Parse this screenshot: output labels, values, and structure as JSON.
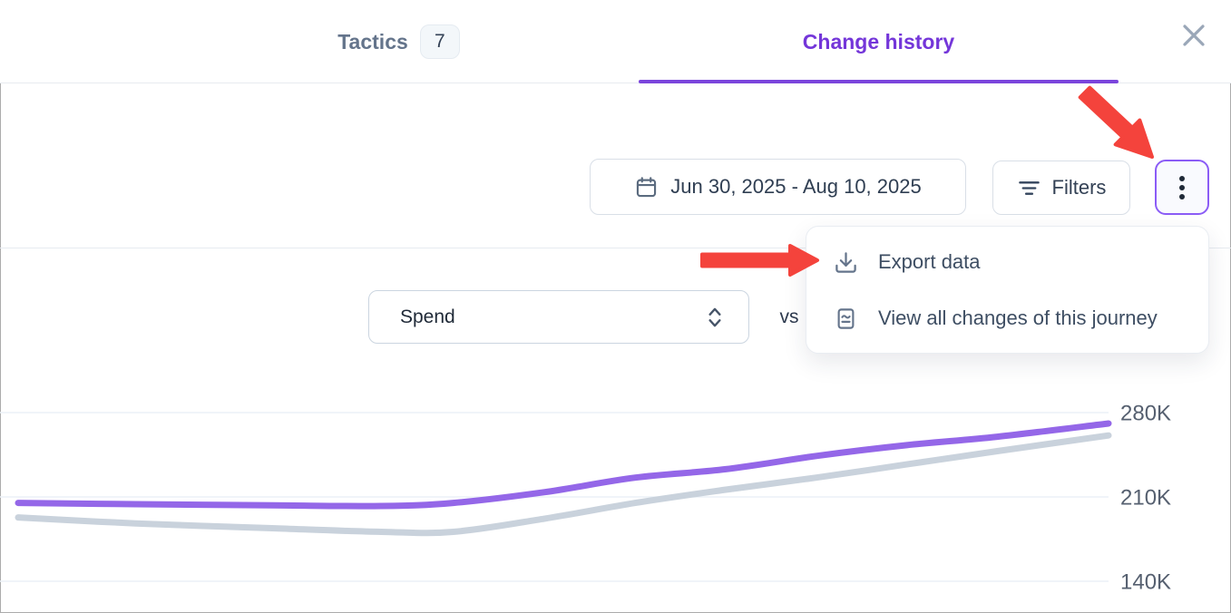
{
  "modal": {
    "tabs": [
      {
        "label": "Tactics",
        "badge": "7",
        "active": false
      },
      {
        "label": "Change history",
        "active": true
      }
    ],
    "close_icon": "x-icon"
  },
  "toolbar": {
    "date_range": "Jun 30, 2025 - Aug 10, 2025",
    "filters_label": "Filters",
    "more_menu_icon": "kebab-vertical-icon",
    "more_menu": {
      "items": [
        {
          "label": "Export data",
          "icon": "download-icon"
        },
        {
          "label": "View all changes of this journey",
          "icon": "document-icon"
        }
      ]
    }
  },
  "metric_bar": {
    "metric_select_value": "Spend",
    "vs_label": "vs"
  },
  "annotations": {
    "arrow_color": "#F4433C",
    "arrow_targets": [
      "more-menu-button",
      "export-data-item"
    ]
  },
  "colors": {
    "accent_purple": "#7436D9",
    "tab_inactive": "#64748B",
    "chart_line_purple": "#9467E8",
    "chart_line_gray": "#C9D2DC",
    "gridline": "#EBF1F7",
    "axis_label": "#566070"
  },
  "chart_data": {
    "type": "line",
    "title": "",
    "xlabel": "",
    "ylabel": "",
    "grid": true,
    "legend": "none",
    "y_ticks": [
      "280K",
      "210K",
      "140K"
    ],
    "y_tick_values_k": [
      280,
      210,
      140
    ],
    "ylim_k": [
      130,
      290
    ],
    "x_range_dates": [
      "Jun 30, 2025",
      "Aug 10, 2025"
    ],
    "series": [
      {
        "name": "purple-line",
        "color": "#9467E8",
        "x_frac": [
          0,
          0.108,
          0.233,
          0.333,
          0.399,
          0.483,
          0.566,
          0.649,
          0.732,
          0.815,
          0.898,
          1
        ],
        "values_k": [
          205,
          204,
          203,
          202.5,
          205,
          214,
          226,
          233,
          244,
          253,
          260,
          271
        ]
      },
      {
        "name": "gray-line",
        "color": "#C9D2DC",
        "x_frac": [
          0,
          0.108,
          0.233,
          0.333,
          0.399,
          0.483,
          0.566,
          0.649,
          0.732,
          0.815,
          0.898,
          1
        ],
        "values_k": [
          193,
          188,
          184,
          181,
          181,
          192,
          205,
          216,
          226,
          237,
          248,
          261
        ]
      }
    ]
  }
}
